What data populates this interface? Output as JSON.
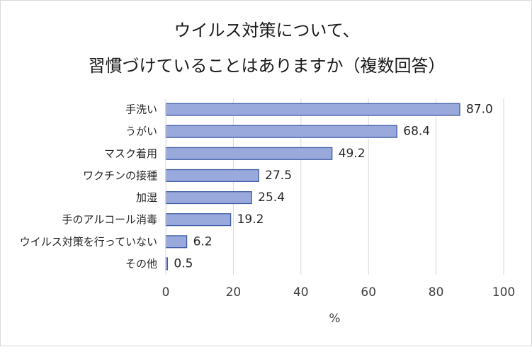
{
  "chart_data": {
    "type": "bar",
    "orientation": "horizontal",
    "title": [
      "ウイルス対策について、",
      "習慣づけていることはありますか（複数回答）"
    ],
    "categories": [
      "手洗い",
      "うがい",
      "マスク着用",
      "ワクチンの接種",
      "加湿",
      "手のアルコール消毒",
      "ウイルス対策を行っていない",
      "その他"
    ],
    "values": [
      87.0,
      68.4,
      49.2,
      27.5,
      25.4,
      19.2,
      6.2,
      0.5
    ],
    "value_labels": [
      "87.0",
      "68.4",
      "49.2",
      "27.5",
      "25.4",
      "19.2",
      "6.2",
      "0.5"
    ],
    "xlabel": "%",
    "xlim": [
      0,
      100
    ],
    "xticks": [
      0,
      20,
      40,
      60,
      80,
      100
    ],
    "grid": true,
    "colors": {
      "bar_fill": "#9aa9dc",
      "bar_stroke": "#3f5ba6",
      "grid": "#d9d9d9"
    }
  }
}
